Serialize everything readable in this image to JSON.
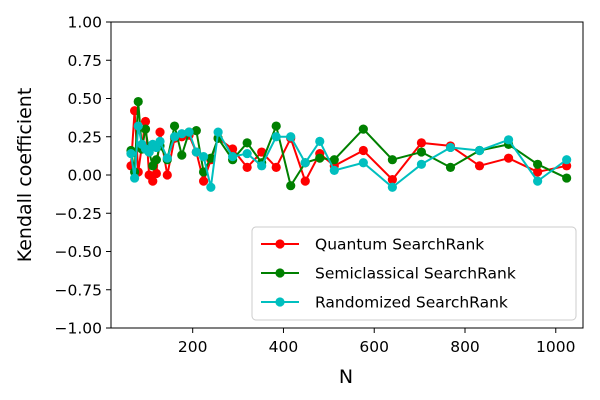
{
  "chart_data": {
    "type": "line",
    "xlabel": "N",
    "ylabel": "Kendall coefficient",
    "xlim": [
      20,
      1060
    ],
    "ylim": [
      -1.0,
      1.0
    ],
    "xticks": [
      200,
      400,
      600,
      800,
      1000
    ],
    "xtick_labels": [
      "200",
      "400",
      "600",
      "800",
      "1000"
    ],
    "yticks": [
      1.0,
      0.75,
      0.5,
      0.25,
      0.0,
      -0.25,
      -0.5,
      -0.75,
      -1.0
    ],
    "ytick_labels": [
      "1.00",
      "0.75",
      "0.50",
      "0.25",
      "0.00",
      "−0.25",
      "−0.50",
      "−0.75",
      "−1.00"
    ],
    "grid": false,
    "legend_position": "lower-right",
    "series": [
      {
        "name": "Quantum SearchRank",
        "color": "#ff0000",
        "x": [
          64,
          72,
          80,
          88,
          96,
          104,
          112,
          120,
          128,
          144,
          160,
          176,
          192,
          208,
          224,
          240,
          256,
          288,
          320,
          352,
          384,
          416,
          448,
          480,
          512,
          576,
          640,
          704,
          768,
          832,
          896,
          960,
          1024
        ],
        "y": [
          0.06,
          0.42,
          0.02,
          0.19,
          0.35,
          0.0,
          -0.04,
          0.01,
          0.28,
          0.0,
          0.24,
          0.25,
          0.26,
          0.15,
          -0.04,
          0.1,
          0.24,
          0.17,
          0.05,
          0.15,
          0.05,
          0.24,
          -0.04,
          0.14,
          0.06,
          0.16,
          -0.03,
          0.21,
          0.19,
          0.06,
          0.11,
          0.02,
          0.06
        ]
      },
      {
        "name": "Semiclassical SearchRank",
        "color": "#008000",
        "x": [
          64,
          72,
          80,
          88,
          96,
          104,
          112,
          120,
          128,
          144,
          160,
          176,
          192,
          208,
          224,
          240,
          256,
          288,
          320,
          352,
          384,
          416,
          448,
          480,
          512,
          576,
          640,
          704,
          768,
          832,
          896,
          960,
          1024
        ],
        "y": [
          0.16,
          0.02,
          0.48,
          0.17,
          0.3,
          0.15,
          0.06,
          0.1,
          0.19,
          0.1,
          0.32,
          0.13,
          0.28,
          0.29,
          0.02,
          0.11,
          0.24,
          0.1,
          0.21,
          0.08,
          0.32,
          -0.07,
          0.08,
          0.11,
          0.1,
          0.3,
          0.1,
          0.15,
          0.05,
          0.16,
          0.2,
          0.07,
          -0.02
        ]
      },
      {
        "name": "Randomized SearchRank",
        "color": "#00bfbf",
        "x": [
          64,
          72,
          80,
          88,
          96,
          104,
          112,
          120,
          128,
          144,
          160,
          176,
          192,
          208,
          224,
          240,
          256,
          288,
          320,
          352,
          384,
          416,
          448,
          480,
          512,
          576,
          640,
          704,
          768,
          832,
          896,
          960,
          1024
        ],
        "y": [
          0.14,
          -0.02,
          0.32,
          0.2,
          0.17,
          0.15,
          0.2,
          0.18,
          0.22,
          0.11,
          0.25,
          0.27,
          0.28,
          0.15,
          0.12,
          -0.08,
          0.28,
          0.12,
          0.14,
          0.06,
          0.25,
          0.25,
          0.08,
          0.22,
          0.03,
          0.08,
          -0.08,
          0.07,
          0.18,
          0.16,
          0.23,
          -0.04,
          0.1
        ]
      }
    ]
  }
}
